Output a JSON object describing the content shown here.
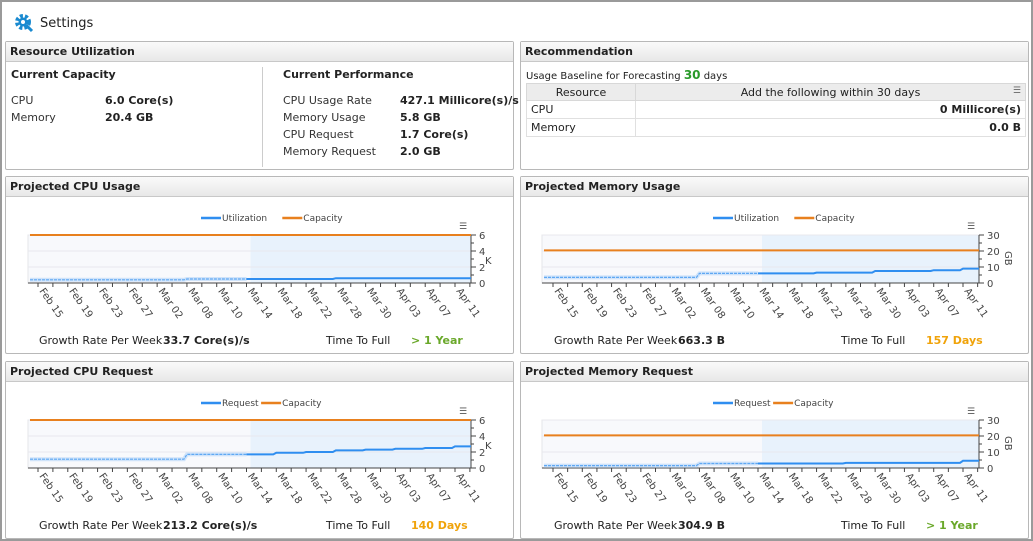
{
  "header": {
    "title": "Settings",
    "icon": "settings-gear-icon"
  },
  "resource": {
    "title": "Resource Utilization",
    "capacity": {
      "heading": "Current Capacity",
      "rows": [
        {
          "label": "CPU",
          "value": "6.0 Core(s)"
        },
        {
          "label": "Memory",
          "value": "20.4 GB"
        }
      ]
    },
    "performance": {
      "heading": "Current Performance",
      "rows": [
        {
          "label": "CPU Usage Rate",
          "value": "427.1 Millicore(s)/s"
        },
        {
          "label": "Memory Usage",
          "value": "5.8 GB"
        },
        {
          "label": "CPU Request",
          "value": "1.7 Core(s)"
        },
        {
          "label": "Memory Request",
          "value": "2.0 GB"
        }
      ]
    }
  },
  "recommendation": {
    "title": "Recommendation",
    "baseline_prefix": "Usage Baseline for Forecasting",
    "baseline_value": "30",
    "baseline_suffix": "days",
    "columns": [
      "Resource",
      "Add the following within 30 days"
    ],
    "rows": [
      {
        "resource": "CPU",
        "value": "0 Millicore(s)"
      },
      {
        "resource": "Memory",
        "value": "0.0 B"
      }
    ]
  },
  "colors": {
    "series": "#2f8ef0",
    "capacity": "#e8801e",
    "green": "#6aa82a",
    "orange": "#f0a30a",
    "forecast_bg": "#e8f2fc"
  },
  "chart_data": [
    {
      "id": "cpu-usage",
      "title": "Projected CPU Usage",
      "type": "line",
      "categories": [
        "Feb 15",
        "Feb 19",
        "Feb 23",
        "Feb 27",
        "Mar 02",
        "Mar 08",
        "Mar 10",
        "Mar 14",
        "Mar 18",
        "Mar 22",
        "Mar 28",
        "Mar 30",
        "Apr 03",
        "Apr 07",
        "Apr 11"
      ],
      "forecast_start": "Mar 14",
      "ylim": [
        0,
        6
      ],
      "yticks": [
        "0",
        "2",
        "4",
        "6"
      ],
      "yunit": "K",
      "series": [
        {
          "name": "Utilization",
          "values": [
            0.4,
            0.4,
            0.4,
            0.4,
            0.4,
            0.5,
            0.5,
            0.5,
            0.5,
            0.5,
            0.6,
            0.6,
            0.6,
            0.6,
            0.6
          ]
        },
        {
          "name": "Capacity",
          "values": [
            6,
            6,
            6,
            6,
            6,
            6,
            6,
            6,
            6,
            6,
            6,
            6,
            6,
            6,
            6
          ]
        }
      ],
      "growth_label": "Growth Rate Per Week",
      "growth_value": "33.7 Core(s)/s",
      "ttf_label": "Time To Full",
      "ttf_value": "> 1 Year",
      "ttf_color": "green"
    },
    {
      "id": "mem-usage",
      "title": "Projected Memory Usage",
      "type": "line",
      "categories": [
        "Feb 15",
        "Feb 19",
        "Feb 23",
        "Feb 27",
        "Mar 02",
        "Mar 08",
        "Mar 10",
        "Mar 14",
        "Mar 18",
        "Mar 22",
        "Mar 28",
        "Mar 30",
        "Apr 03",
        "Apr 07",
        "Apr 11"
      ],
      "forecast_start": "Mar 14",
      "ylim": [
        0,
        30
      ],
      "yticks": [
        "0",
        "10",
        "20",
        "30"
      ],
      "yunit": "GB",
      "series": [
        {
          "name": "Utilization",
          "values": [
            3.5,
            3.5,
            3.5,
            3.5,
            3.5,
            6,
            6,
            6,
            6,
            6.5,
            6.5,
            7.5,
            7.5,
            8,
            9
          ]
        },
        {
          "name": "Capacity",
          "values": [
            20.4,
            20.4,
            20.4,
            20.4,
            20.4,
            20.4,
            20.4,
            20.4,
            20.4,
            20.4,
            20.4,
            20.4,
            20.4,
            20.4,
            20.4
          ]
        }
      ],
      "growth_label": "Growth Rate Per Week",
      "growth_value": "663.3 B",
      "ttf_label": "Time To Full",
      "ttf_value": "157 Days",
      "ttf_color": "orange"
    },
    {
      "id": "cpu-request",
      "title": "Projected CPU Request",
      "type": "line",
      "categories": [
        "Feb 15",
        "Feb 19",
        "Feb 23",
        "Feb 27",
        "Mar 02",
        "Mar 08",
        "Mar 10",
        "Mar 14",
        "Mar 18",
        "Mar 22",
        "Mar 28",
        "Mar 30",
        "Apr 03",
        "Apr 07",
        "Apr 11"
      ],
      "forecast_start": "Mar 14",
      "ylim": [
        0,
        6
      ],
      "yticks": [
        "0",
        "2",
        "4",
        "6"
      ],
      "yunit": "K",
      "series": [
        {
          "name": "Request",
          "values": [
            1.1,
            1.1,
            1.1,
            1.1,
            1.1,
            1.7,
            1.7,
            1.7,
            1.9,
            2.0,
            2.2,
            2.3,
            2.4,
            2.5,
            2.7
          ]
        },
        {
          "name": "Capacity",
          "values": [
            6,
            6,
            6,
            6,
            6,
            6,
            6,
            6,
            6,
            6,
            6,
            6,
            6,
            6,
            6
          ]
        }
      ],
      "growth_label": "Growth Rate Per Week",
      "growth_value": "213.2 Core(s)/s",
      "ttf_label": "Time To Full",
      "ttf_value": "140 Days",
      "ttf_color": "orange"
    },
    {
      "id": "mem-request",
      "title": "Projected Memory Request",
      "type": "line",
      "categories": [
        "Feb 15",
        "Feb 19",
        "Feb 23",
        "Feb 27",
        "Mar 02",
        "Mar 08",
        "Mar 10",
        "Mar 14",
        "Mar 18",
        "Mar 22",
        "Mar 28",
        "Mar 30",
        "Apr 03",
        "Apr 07",
        "Apr 11"
      ],
      "forecast_start": "Mar 14",
      "ylim": [
        0,
        30
      ],
      "yticks": [
        "0",
        "10",
        "20",
        "30"
      ],
      "yunit": "GB",
      "series": [
        {
          "name": "Request",
          "values": [
            1.5,
            1.5,
            1.5,
            1.5,
            1.5,
            2.8,
            2.8,
            2.8,
            2.8,
            2.8,
            3.2,
            3.2,
            3.2,
            3.2,
            4.5
          ]
        },
        {
          "name": "Capacity",
          "values": [
            20.4,
            20.4,
            20.4,
            20.4,
            20.4,
            20.4,
            20.4,
            20.4,
            20.4,
            20.4,
            20.4,
            20.4,
            20.4,
            20.4,
            20.4
          ]
        }
      ],
      "growth_label": "Growth Rate Per Week",
      "growth_value": "304.9 B",
      "ttf_label": "Time To Full",
      "ttf_value": "> 1 Year",
      "ttf_color": "green"
    }
  ]
}
